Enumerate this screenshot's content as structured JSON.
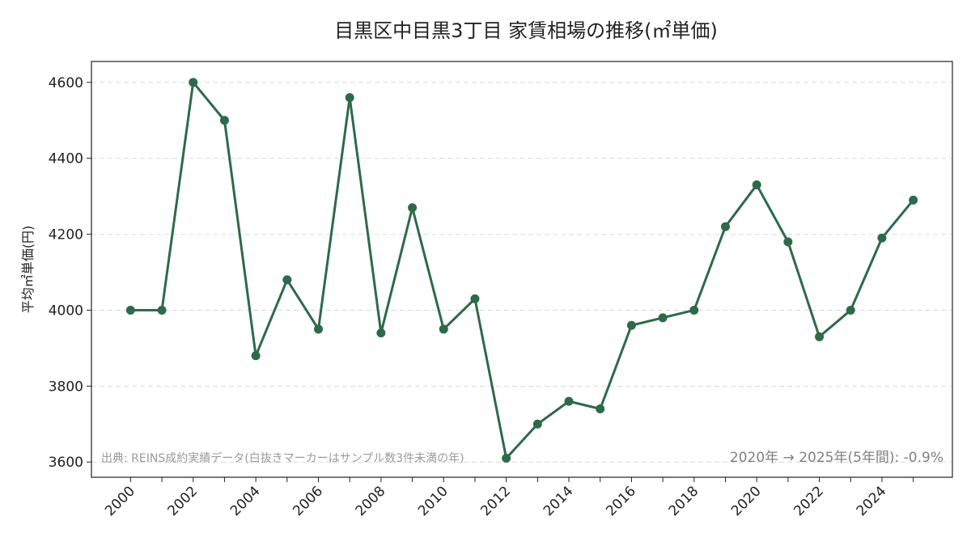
{
  "chart_data": {
    "type": "line",
    "title": "目黒区中目黒3丁目 家賃相場の推移(㎡単価)",
    "xlabel": "",
    "ylabel": "平均㎡単価(円)",
    "x": [
      2000,
      2001,
      2002,
      2003,
      2004,
      2005,
      2006,
      2007,
      2008,
      2009,
      2010,
      2011,
      2012,
      2013,
      2014,
      2015,
      2016,
      2017,
      2018,
      2019,
      2020,
      2021,
      2022,
      2023,
      2024,
      2025
    ],
    "series": [
      {
        "values": [
          4000,
          4000,
          4600,
          4500,
          3880,
          4080,
          3950,
          4560,
          3940,
          4270,
          3950,
          4030,
          3610,
          3700,
          3760,
          3740,
          3960,
          3980,
          4000,
          4220,
          4330,
          4180,
          3930,
          4000,
          4190,
          4290
        ],
        "color": "#2d6a4a"
      }
    ],
    "x_ticks": [
      2000,
      2002,
      2004,
      2006,
      2008,
      2010,
      2012,
      2014,
      2016,
      2018,
      2020,
      2022,
      2024
    ],
    "y_ticks": [
      3600,
      3800,
      4000,
      4200,
      4400,
      4600
    ],
    "xlim": [
      1998.75,
      2026.25
    ],
    "ylim": [
      3560,
      4655
    ],
    "grid": "y-dashed",
    "source_note": "出典: REINS成約実績データ(白抜きマーカーはサンプル数3件未満の年)",
    "change_note": "2020年 → 2025年(5年間): -0.9%"
  }
}
